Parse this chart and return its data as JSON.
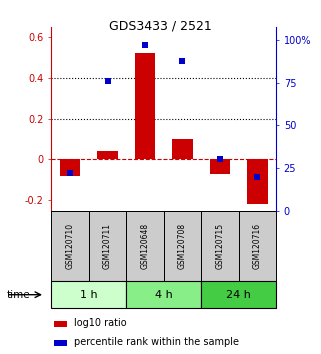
{
  "title": "GDS3433 / 2521",
  "samples": [
    "GSM120710",
    "GSM120711",
    "GSM120648",
    "GSM120708",
    "GSM120715",
    "GSM120716"
  ],
  "log10_ratio": [
    -0.08,
    0.04,
    0.52,
    0.1,
    -0.07,
    -0.22
  ],
  "percentile_rank": [
    22,
    76,
    97,
    88,
    30,
    20
  ],
  "groups": [
    {
      "label": "1 h",
      "samples": [
        0,
        1
      ],
      "color": "#ccffcc"
    },
    {
      "label": "4 h",
      "samples": [
        2,
        3
      ],
      "color": "#88ee88"
    },
    {
      "label": "24 h",
      "samples": [
        4,
        5
      ],
      "color": "#44cc44"
    }
  ],
  "bar_color": "#cc0000",
  "dot_color": "#0000cc",
  "ylim_left": [
    -0.25,
    0.65
  ],
  "ylim_right": [
    0,
    108
  ],
  "yticks_left": [
    -0.2,
    0.0,
    0.2,
    0.4,
    0.6
  ],
  "ytick_labels_left": [
    "-0.2",
    "0",
    "0.2",
    "0.4",
    "0.6"
  ],
  "yticks_right": [
    0,
    25,
    50,
    75,
    100
  ],
  "ytick_labels_right": [
    "0",
    "25",
    "50",
    "75",
    "100%"
  ],
  "label_log10": "log10 ratio",
  "label_percentile": "percentile rank within the sample",
  "sample_box_color": "#cccccc",
  "bar_width": 0.55,
  "dot_size": 4
}
